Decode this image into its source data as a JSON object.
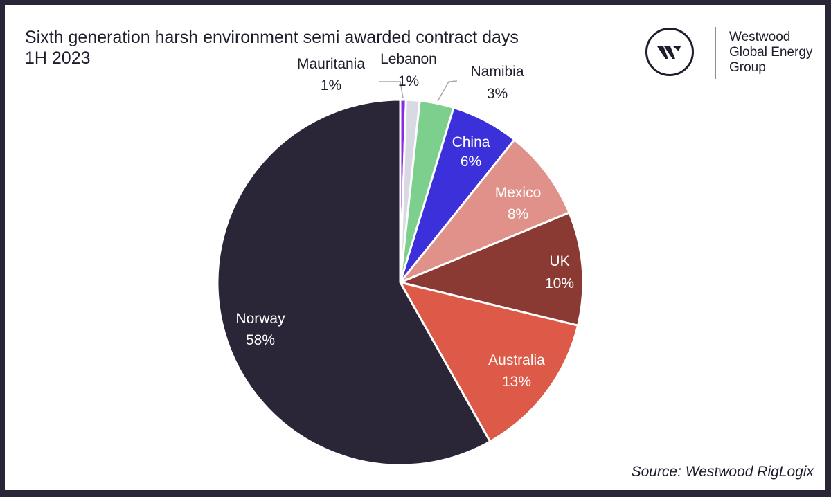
{
  "header": {
    "title_line1": "Sixth generation harsh environment semi awarded contract days",
    "title_line2": "1H 2023"
  },
  "logo": {
    "icon": "westwood-w-logo-icon",
    "line1": "Westwood",
    "line2": "Global Energy",
    "line3": "Group"
  },
  "footer": {
    "source": "Source: Westwood RigLogix"
  },
  "chart_data": {
    "type": "pie",
    "title": "Sixth generation harsh environment semi awarded contract days 1H 2023",
    "start_angle": "12 o'clock, clockwise",
    "categories": [
      "Mauritania",
      "Lebanon",
      "Namibia",
      "China",
      "Mexico",
      "UK",
      "Australia",
      "Norway"
    ],
    "values": [
      1,
      1,
      3,
      6,
      8,
      10,
      13,
      58
    ],
    "labels": [
      "1%",
      "1%",
      "3%",
      "6%",
      "8%",
      "10%",
      "13%",
      "58%"
    ],
    "colors": [
      "#8a2be2",
      "#d9d9e3",
      "#7ccf8c",
      "#3b30d9",
      "#e0928a",
      "#8b3a33",
      "#dc5a47",
      "#2a2638"
    ],
    "label_position": {
      "Mauritania": "outside",
      "Lebanon": "outside",
      "Namibia": "outside",
      "China": "inside",
      "Mexico": "inside",
      "UK": "inside",
      "Australia": "inside",
      "Norway": "inside"
    }
  }
}
